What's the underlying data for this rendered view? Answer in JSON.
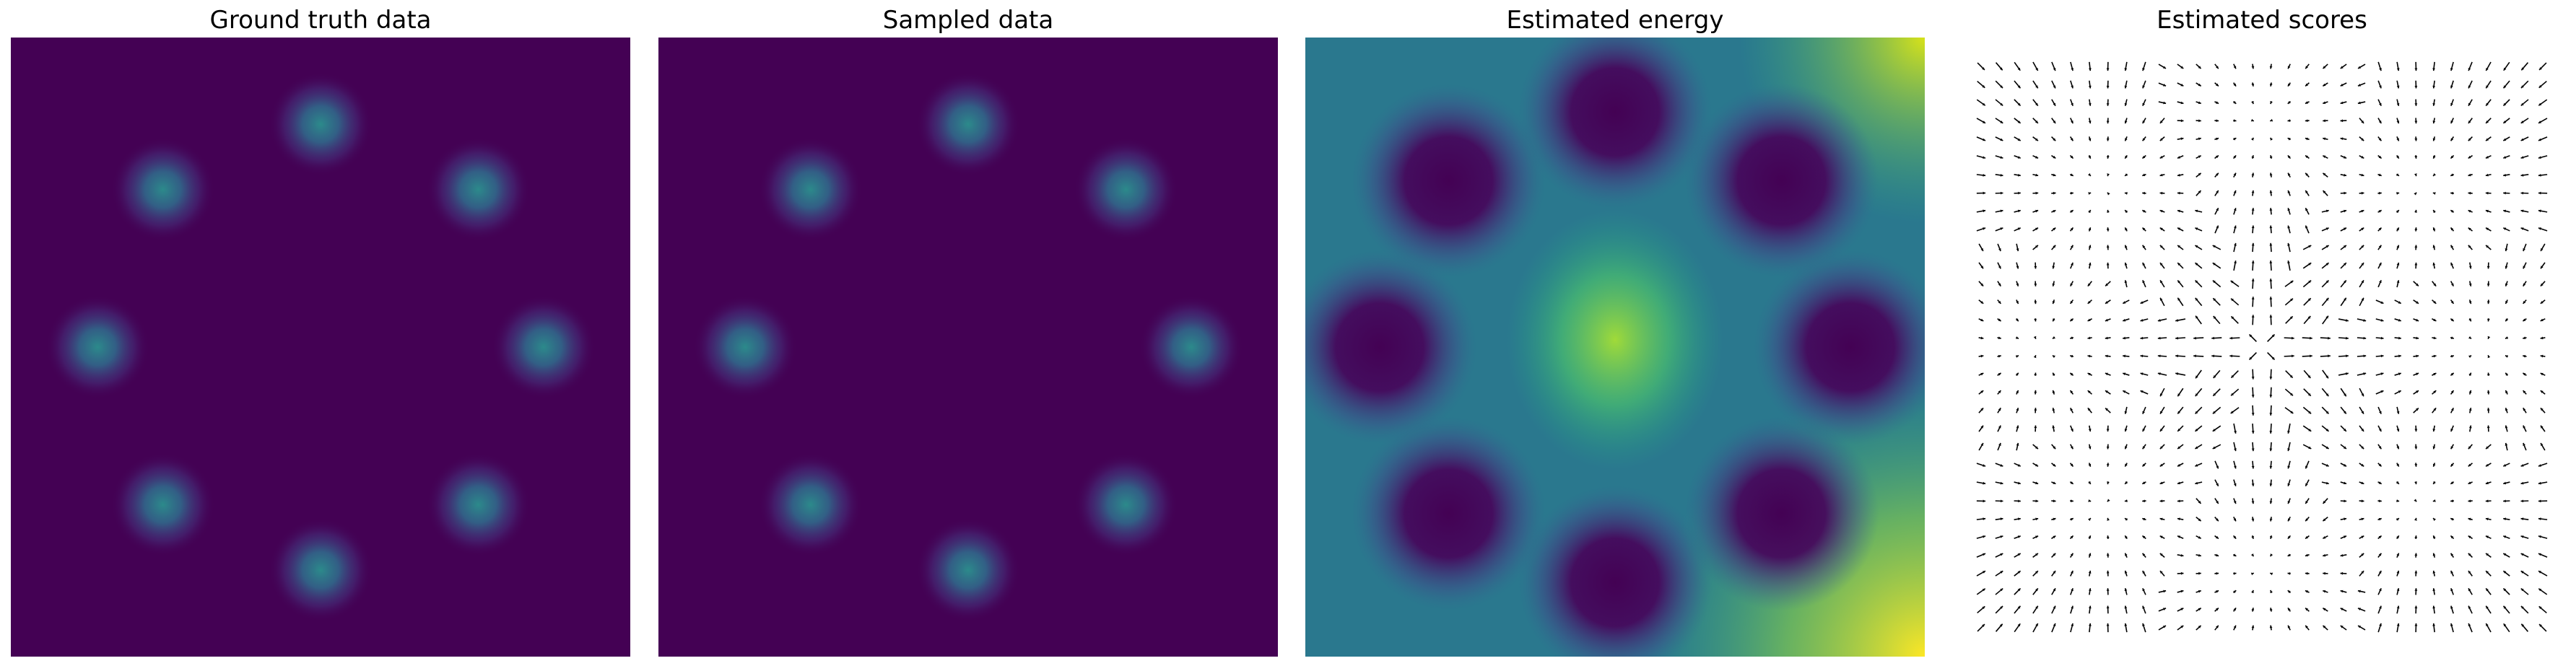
{
  "panels": [
    {
      "title": "Ground truth data",
      "type": "heatmap"
    },
    {
      "title": "Sampled data",
      "type": "heatmap"
    },
    {
      "title": "Estimated energy",
      "type": "heatmap"
    },
    {
      "title": "Estimated scores",
      "type": "quiver"
    }
  ],
  "chart_data": [
    {
      "type": "heatmap",
      "title": "Ground truth data",
      "xlabel": "",
      "ylabel": "",
      "axes": "off",
      "colormap": "viridis",
      "distribution": "mixture of 8 Gaussians on a ring",
      "n_modes": 8,
      "mode_angles_deg": [
        0,
        45,
        90,
        135,
        180,
        225,
        270,
        315
      ],
      "ring_radius_rel": 0.72,
      "background_color": "#440154",
      "peak_color": "#2a8f8c"
    },
    {
      "type": "heatmap",
      "title": "Sampled data",
      "xlabel": "",
      "ylabel": "",
      "axes": "off",
      "colormap": "viridis",
      "distribution": "mixture of 8 Gaussians on a ring",
      "n_modes": 8,
      "mode_angles_deg": [
        0,
        45,
        90,
        135,
        180,
        225,
        270,
        315
      ],
      "ring_radius_rel": 0.72,
      "background_color": "#440154",
      "peak_color": "#2a8f8c"
    },
    {
      "type": "heatmap",
      "title": "Estimated energy",
      "xlabel": "",
      "ylabel": "",
      "axes": "off",
      "colormap": "viridis",
      "description_values": {
        "energy_minima_at_modes": 8,
        "center_energy": "high",
        "corner_energy_bottom_right": "highest",
        "corner_energy_top_right": "high"
      }
    },
    {
      "type": "quiver",
      "title": "Estimated scores",
      "xlabel": "",
      "ylabel": "",
      "axes": "off",
      "grid_points": 32,
      "arrow_color": "#000000",
      "field": "points toward the 8 ring modes"
    }
  ],
  "colors": {
    "viridis_low": "#440154",
    "viridis_mid": "#21918c",
    "viridis_high": "#fde725",
    "arrow": "#000000"
  }
}
